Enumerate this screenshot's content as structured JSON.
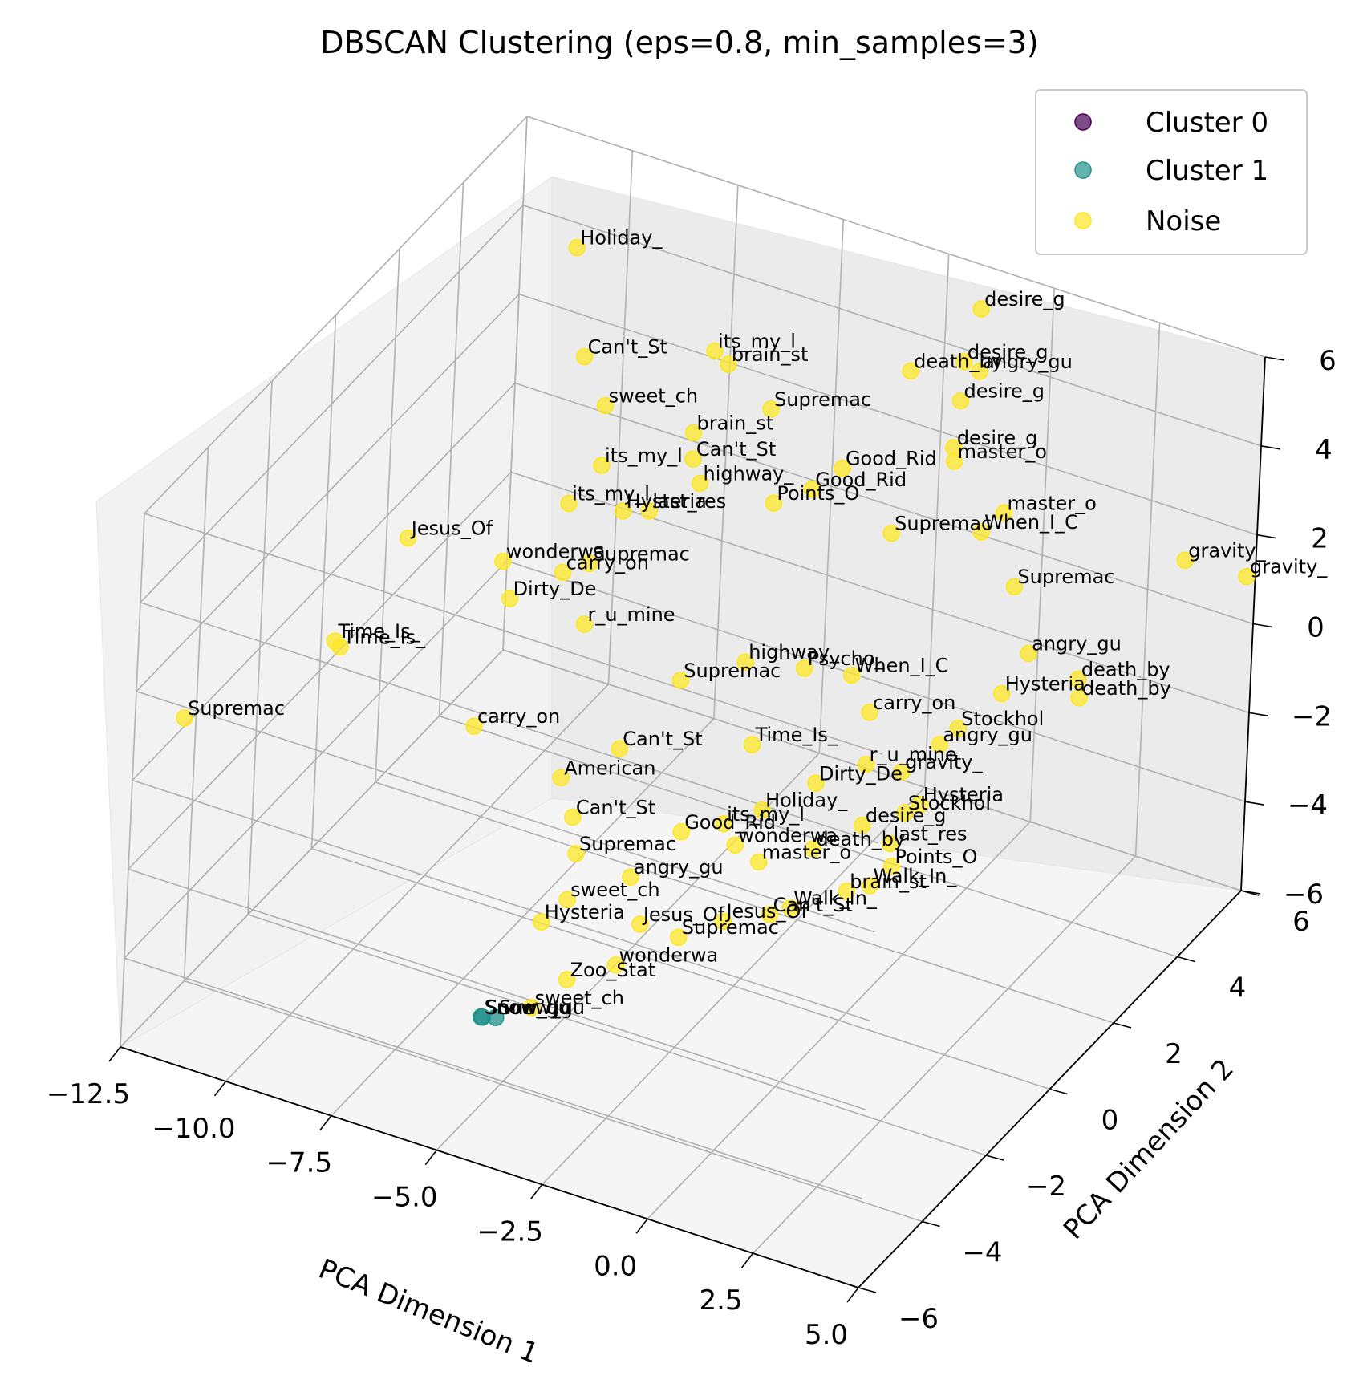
{
  "chart_data": {
    "type": "scatter",
    "title": "DBSCAN Clustering (eps=0.8, min_samples=3)",
    "xlabel": "PCA Dimension 1",
    "ylabel": "PCA Dimension 2",
    "zlabel": "",
    "xlim": [
      -12.5,
      5.0
    ],
    "ylim": [
      -6,
      6
    ],
    "zlim": [
      -6,
      6
    ],
    "x_ticks": [
      "−12.5",
      "−10.0",
      "−7.5",
      "−5.0",
      "−2.5",
      "0.0",
      "2.5",
      "5.0"
    ],
    "y_ticks": [
      "−6",
      "−4",
      "−2",
      "0",
      "2",
      "4",
      "6"
    ],
    "z_ticks": [
      "−6",
      "−4",
      "−2",
      "0",
      "2",
      "4",
      "6"
    ],
    "grid": true,
    "legend_position": "top-right",
    "series": [
      {
        "name": "Cluster 0",
        "color": "#440154",
        "points": []
      },
      {
        "name": "Cluster 1",
        "color": "#21918c",
        "points": [
          {
            "x": -4.6,
            "y": -5.3,
            "z": -3.4,
            "label": "Snow_gu"
          },
          {
            "x": -4.4,
            "y": -5.1,
            "z": -3.5,
            "label": "Snow_gu"
          },
          {
            "x": -4.5,
            "y": -5.4,
            "z": -3.3,
            "label": "Snow_gu"
          }
        ]
      },
      {
        "name": "Noise",
        "color": "#fde725",
        "points": [
          {
            "x": -12.2,
            "y": -4.8,
            "z": 0.6,
            "label": "Supremac"
          },
          {
            "x": -10.9,
            "y": -1.8,
            "z": 0.5,
            "label": "Time_Is_"
          },
          {
            "x": -10.7,
            "y": -1.9,
            "z": 0.5,
            "label": "Time_Is_"
          },
          {
            "x": -11.0,
            "y": 0.6,
            "z": 1.0,
            "label": "Jesus_Of"
          },
          {
            "x": -9.4,
            "y": 1.5,
            "z": 0.3,
            "label": "wonderwa"
          },
          {
            "x": -8.7,
            "y": 0.8,
            "z": 0.2,
            "label": "Dirty_De"
          },
          {
            "x": -7.2,
            "y": -2.3,
            "z": 0.1,
            "label": "carry_on"
          },
          {
            "x": -10.2,
            "y": 4.6,
            "z": 4.8,
            "label": "Holiday_"
          },
          {
            "x": -9.2,
            "y": 3.6,
            "z": 3.4,
            "label": "Can't_St"
          },
          {
            "x": -9.3,
            "y": 4.5,
            "z": 1.6,
            "label": "sweet_ch"
          },
          {
            "x": -8.4,
            "y": 3.2,
            "z": 1.5,
            "label": "its_my_l"
          },
          {
            "x": -8.7,
            "y": 2.6,
            "z": 1.0,
            "label": "its_my_l"
          },
          {
            "x": -8.2,
            "y": 1.8,
            "z": 0.2,
            "label": "carry_on"
          },
          {
            "x": -7.5,
            "y": 1.6,
            "z": -0.6,
            "label": "r_u_mine"
          },
          {
            "x": -7.8,
            "y": 2.1,
            "z": 0.3,
            "label": "Supremac"
          },
          {
            "x": -7.0,
            "y": 2.0,
            "z": 1.8,
            "label": "Hysteria"
          },
          {
            "x": -6.6,
            "y": 2.3,
            "z": 1.7,
            "label": "last_res"
          },
          {
            "x": -6.8,
            "y": 4.5,
            "z": 3.6,
            "label": "its_my_l"
          },
          {
            "x": -6.4,
            "y": 4.4,
            "z": 3.5,
            "label": "brain_st"
          },
          {
            "x": -5.0,
            "y": 3.9,
            "z": 3.3,
            "label": "Supremac"
          },
          {
            "x": -6.5,
            "y": 3.5,
            "z": 2.6,
            "label": "brain_st"
          },
          {
            "x": -6.2,
            "y": 3.1,
            "z": 2.4,
            "label": "Can't_St"
          },
          {
            "x": -5.8,
            "y": 2.8,
            "z": 2.2,
            "label": "highway_"
          },
          {
            "x": -4.2,
            "y": 3.0,
            "z": 2.1,
            "label": "Points_O"
          },
          {
            "x": -3.6,
            "y": 3.4,
            "z": 2.3,
            "label": "Good_Rid"
          },
          {
            "x": -3.2,
            "y": 3.8,
            "z": 2.6,
            "label": "Good_Rid"
          },
          {
            "x": -2.7,
            "y": 5.2,
            "z": 3.9,
            "label": "death_by"
          },
          {
            "x": -1.4,
            "y": 5.6,
            "z": 5.4,
            "label": "desire_g"
          },
          {
            "x": -1.6,
            "y": 5.4,
            "z": 4.3,
            "label": "desire_g"
          },
          {
            "x": -1.3,
            "y": 5.5,
            "z": 4.1,
            "label": "angry_gu"
          },
          {
            "x": -1.5,
            "y": 5.2,
            "z": 3.6,
            "label": "desire_g"
          },
          {
            "x": -1.4,
            "y": 4.9,
            "z": 2.8,
            "label": "desire_g"
          },
          {
            "x": -1.3,
            "y": 4.8,
            "z": 2.6,
            "label": "master_o"
          },
          {
            "x": 0.2,
            "y": 4.4,
            "z": 2.2,
            "label": "master_o"
          },
          {
            "x": -0.1,
            "y": 4.1,
            "z": 1.9,
            "label": "When_I_C"
          },
          {
            "x": -1.7,
            "y": 3.4,
            "z": 1.9,
            "label": "Supremac"
          },
          {
            "x": 1.3,
            "y": 3.3,
            "z": 1.7,
            "label": "Supremac"
          },
          {
            "x": 3.7,
            "y": 5.5,
            "z": 1.4,
            "label": "gravity_"
          },
          {
            "x": 4.8,
            "y": 6.0,
            "z": 1.0,
            "label": "gravity_"
          },
          {
            "x": 2.2,
            "y": 2.6,
            "z": 1.0,
            "label": "angry_gu"
          },
          {
            "x": 3.1,
            "y": 3.0,
            "z": 0.4,
            "label": "death_by"
          },
          {
            "x": 3.0,
            "y": 3.2,
            "z": -0.2,
            "label": "death_by"
          },
          {
            "x": 1.9,
            "y": 2.2,
            "z": 0.3,
            "label": "Hysteria"
          },
          {
            "x": 1.2,
            "y": 1.8,
            "z": -0.4,
            "label": "Stockhol"
          },
          {
            "x": 1.0,
            "y": 1.5,
            "z": -0.6,
            "label": "angry_gu"
          },
          {
            "x": 1.1,
            "y": 0.8,
            "z": -1.4,
            "label": "Hysteria"
          },
          {
            "x": 0.9,
            "y": 0.6,
            "z": -1.5,
            "label": "Stockhol"
          },
          {
            "x": 0.8,
            "y": 0.3,
            "z": -2.0,
            "label": "last_res"
          },
          {
            "x": 1.0,
            "y": 0.1,
            "z": -2.3,
            "label": "Points_O"
          },
          {
            "x": 0.8,
            "y": -0.3,
            "z": -2.5,
            "label": "Walk_In_"
          },
          {
            "x": 0.4,
            "y": -0.5,
            "z": -2.6,
            "label": "brain_st"
          },
          {
            "x": -0.4,
            "y": -1.2,
            "z": -2.7,
            "label": "Walk_In_"
          },
          {
            "x": -0.8,
            "y": -1.3,
            "z": -2.9,
            "label": "Can't_St"
          },
          {
            "x": -1.6,
            "y": -1.7,
            "z": -3.0,
            "label": "Jesus_Of"
          },
          {
            "x": -2.2,
            "y": -2.3,
            "z": -3.1,
            "label": "Supremac"
          },
          {
            "x": -3.0,
            "y": -3.2,
            "z": -3.3,
            "label": "wonderwa"
          },
          {
            "x": -3.7,
            "y": -3.8,
            "z": -3.4,
            "label": "Zoo_Stat"
          },
          {
            "x": -4.0,
            "y": -4.5,
            "z": -3.6,
            "label": "sweet_ch"
          },
          {
            "x": -4.5,
            "y": -3.6,
            "z": -2.5,
            "label": "Hysteria"
          },
          {
            "x": -4.2,
            "y": -3.2,
            "z": -2.2,
            "label": "sweet_ch"
          },
          {
            "x": -4.4,
            "y": -2.7,
            "z": -1.6,
            "label": "Supremac"
          },
          {
            "x": -4.8,
            "y": -2.3,
            "z": -1.2,
            "label": "Can't_St"
          },
          {
            "x": -5.4,
            "y": -1.9,
            "z": -0.8,
            "label": "American"
          },
          {
            "x": -4.7,
            "y": -1.0,
            "z": -0.6,
            "label": "Can't_St"
          },
          {
            "x": -4.2,
            "y": 0.2,
            "z": 0.2,
            "label": "Supremac"
          },
          {
            "x": -3.2,
            "y": 0.9,
            "z": 0.4,
            "label": "highway_"
          },
          {
            "x": -2.1,
            "y": 1.3,
            "z": 0.3,
            "label": "Psycho_"
          },
          {
            "x": -1.2,
            "y": 1.6,
            "z": 0.2,
            "label": "When_I_C"
          },
          {
            "x": -0.6,
            "y": 1.4,
            "z": -0.3,
            "label": "carry_on"
          },
          {
            "x": -0.2,
            "y": 0.8,
            "z": -0.9,
            "label": "r_u_mine"
          },
          {
            "x": -1.0,
            "y": 0.3,
            "z": -1.2,
            "label": "Dirty_De"
          },
          {
            "x": -1.8,
            "y": -0.3,
            "z": -1.6,
            "label": "Holiday_"
          },
          {
            "x": -2.4,
            "y": -0.7,
            "z": -1.8,
            "label": "its_my_l"
          },
          {
            "x": -3.1,
            "y": -1.1,
            "z": -1.9,
            "label": "Good_Rid"
          },
          {
            "x": -2.6,
            "y": 0.4,
            "z": -0.9,
            "label": "Time_Is_"
          },
          {
            "x": -1.4,
            "y": -0.9,
            "z": -2.2,
            "label": "master_o"
          },
          {
            "x": -0.5,
            "y": -0.4,
            "z": -2.0,
            "label": "death_by"
          },
          {
            "x": 0.2,
            "y": 0.2,
            "z": -1.7,
            "label": "desire_g"
          },
          {
            "x": 0.5,
            "y": 1.0,
            "z": -1.0,
            "label": "gravity_"
          },
          {
            "x": -3.6,
            "y": -2.0,
            "z": -2.4,
            "label": "angry_gu"
          },
          {
            "x": -2.9,
            "y": -2.6,
            "z": -2.8,
            "label": "Jesus_Of"
          },
          {
            "x": -1.9,
            "y": -1.0,
            "z": -1.9,
            "label": "wonderwa"
          }
        ]
      }
    ]
  }
}
